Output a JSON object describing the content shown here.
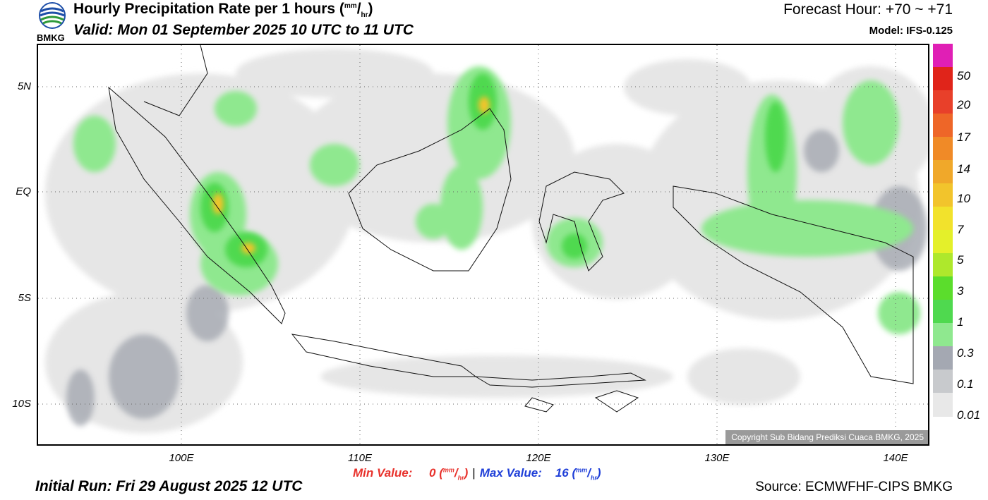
{
  "header": {
    "title": "Hourly Precipitation Rate per 1 hours (",
    "unit_num": "mm",
    "unit_den": "hr",
    "valid": "Valid: Mon 01 September 2025 10 UTC to 11 UTC",
    "forecast_hour": "Forecast Hour: +70 ~ +71",
    "model": "Model: IFS-0.125",
    "logo_text": "BMKG"
  },
  "map": {
    "lat_labels": [
      "5N",
      "EQ",
      "5S",
      "10S"
    ],
    "lon_labels": [
      "100E",
      "110E",
      "120E",
      "130E",
      "140E"
    ],
    "lat_values": [
      5,
      0,
      -5,
      -10
    ],
    "lon_values": [
      100,
      110,
      120,
      130,
      140
    ],
    "extent": {
      "lon_min": 92,
      "lon_max": 142,
      "lat_min": -12,
      "lat_max": 7
    },
    "copyright": "Copyright Sub Bidang Prediksi Cuaca BMKG, 2025",
    "gridlines": true
  },
  "legend": {
    "colors": [
      "#e01fb5",
      "#e0241a",
      "#e8402a",
      "#ee6628",
      "#f08a27",
      "#f0a82a",
      "#f2c42c",
      "#f2e22c",
      "#e4f02a",
      "#aee82c",
      "#5bdd2c",
      "#4fd94f",
      "#8fe88f",
      "#a4a8b2",
      "#c8cacd",
      "#e8e8e8"
    ],
    "labels": [
      "50",
      "20",
      "17",
      "14",
      "10",
      "7",
      "5",
      "3",
      "1",
      "0.3",
      "0.1",
      "0.01"
    ]
  },
  "footer": {
    "min_label": "Min Value:",
    "min_value": "0",
    "max_label": "Max Value:",
    "max_value": "16",
    "unit_num": "mm",
    "unit_den": "hr",
    "initial_run": "Initial Run: Fri 29 August 2025 12 UTC",
    "source": "Source: ECMWFHF-CIPS BMKG"
  }
}
